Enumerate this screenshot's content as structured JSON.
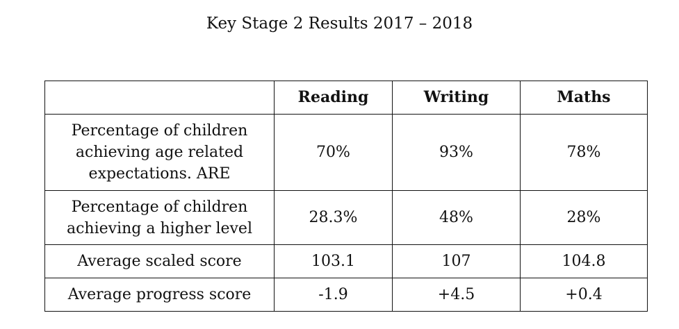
{
  "title": "Key Stage 2 Results 2017 – 2018",
  "table": {
    "corner": "",
    "columns": [
      "Reading",
      "Writing",
      "Maths"
    ],
    "rows": [
      {
        "label_lines": [
          "Percentage of children",
          "achieving age related",
          "expectations. ARE"
        ],
        "values": [
          "70%",
          "93%",
          "78%"
        ]
      },
      {
        "label_lines": [
          "Percentage of children",
          "achieving a higher level"
        ],
        "values": [
          "28.3%",
          "48%",
          "28%"
        ]
      },
      {
        "label_lines": [
          "Average scaled score"
        ],
        "values": [
          "103.1",
          "107",
          "104.8"
        ]
      },
      {
        "label_lines": [
          "Average progress score"
        ],
        "values": [
          "-1.9",
          "+4.5",
          "+0.4"
        ]
      }
    ]
  }
}
